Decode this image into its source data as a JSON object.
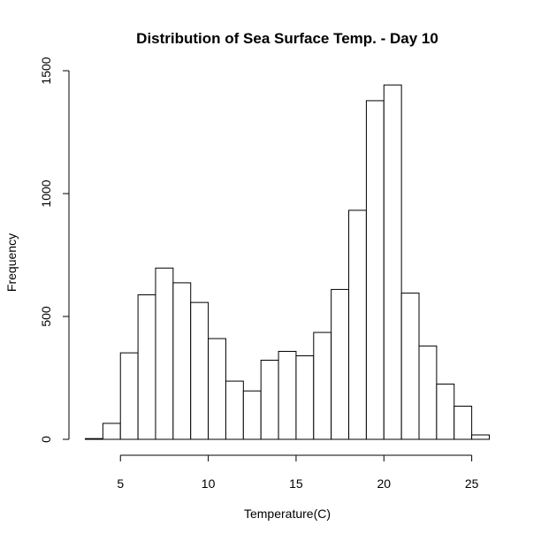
{
  "chart_data": {
    "type": "bar",
    "subtype": "histogram",
    "title": "Distribution of Sea Surface Temp. - Day 10",
    "xlabel": "Temperature(C)",
    "ylabel": "Frequency",
    "xlim": [
      3,
      26
    ],
    "ylim": [
      0,
      1500
    ],
    "xticks": [
      5,
      10,
      15,
      20,
      25
    ],
    "yticks": [
      0,
      500,
      1000,
      1500
    ],
    "bin_edges": [
      3,
      4,
      5,
      6,
      7,
      8,
      9,
      10,
      11,
      12,
      13,
      14,
      15,
      16,
      17,
      18,
      19,
      20,
      21,
      22,
      23,
      24,
      25,
      26
    ],
    "values": [
      3,
      65,
      352,
      588,
      697,
      637,
      557,
      410,
      237,
      197,
      322,
      358,
      340,
      435,
      610,
      932,
      1378,
      1442,
      595,
      380,
      225,
      135,
      18
    ],
    "grid": false,
    "legend": "none",
    "bar_fill": "#ffffff",
    "bar_stroke": "#000000"
  }
}
